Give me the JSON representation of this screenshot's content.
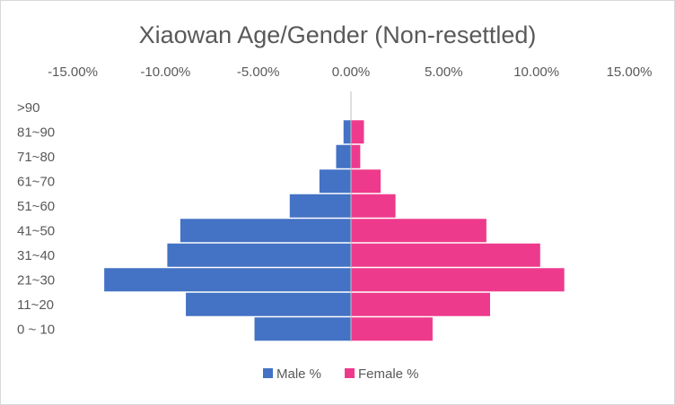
{
  "chart_data": {
    "type": "bar",
    "orientation": "horizontal",
    "layout": "population-pyramid",
    "title": "Xiaowan Age/Gender (Non-resettled)",
    "xlabel": "",
    "ylabel": "",
    "xlim": [
      -15,
      15
    ],
    "x_ticks": [
      -15,
      -10,
      -5,
      0,
      5,
      10,
      15
    ],
    "x_tick_labels": [
      "-15.00%",
      "-10.00%",
      "-5.00%",
      "0.00%",
      "5.00%",
      "10.00%",
      "15.00%"
    ],
    "x_axis_position": "top",
    "grid": false,
    "legend_position": "bottom",
    "categories": [
      "0 ~ 10",
      "11~20",
      "21~30",
      "31~40",
      "41~50",
      "51~60",
      "61~70",
      "71~80",
      "81~90",
      ">90"
    ],
    "series": [
      {
        "name": "Male %",
        "color": "#4472c4",
        "values": [
          -5.2,
          -8.9,
          -13.3,
          -9.9,
          -9.2,
          -3.3,
          -1.7,
          -0.8,
          -0.4,
          0
        ]
      },
      {
        "name": "Female %",
        "color": "#ee3a8c",
        "values": [
          4.4,
          7.5,
          11.5,
          10.2,
          7.3,
          2.4,
          1.6,
          0.5,
          0.7,
          0
        ]
      }
    ]
  }
}
